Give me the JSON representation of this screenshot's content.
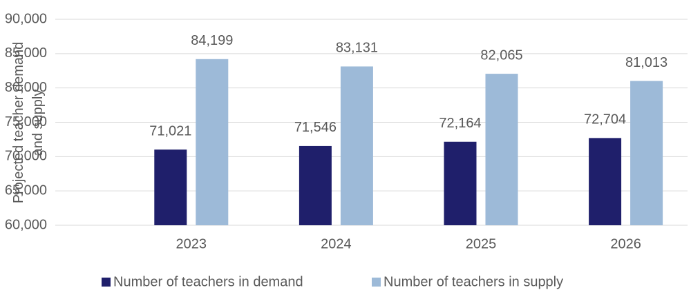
{
  "chart_data": {
    "type": "bar",
    "y_label": "Projected teacher demand and supply",
    "categories": [
      "2023",
      "2024",
      "2025",
      "2026"
    ],
    "series": [
      {
        "name": "Number of teachers in demand",
        "color": "#1f1f6b",
        "values": [
          71021,
          71546,
          72164,
          72704
        ],
        "value_labels": [
          "71,021",
          "71,546",
          "72,164",
          "72,704"
        ]
      },
      {
        "name": "Number of teachers in supply",
        "color": "#9dbad8",
        "values": [
          84199,
          83131,
          82065,
          81013
        ],
        "value_labels": [
          "84,199",
          "83,131",
          "82,065",
          "81,013"
        ]
      }
    ],
    "ylim": [
      60000,
      90000
    ],
    "yticks": [
      {
        "value": 60000,
        "label": "60,000"
      },
      {
        "value": 65000,
        "label": "65,000"
      },
      {
        "value": 70000,
        "label": "70,000"
      },
      {
        "value": 75000,
        "label": "75,000"
      },
      {
        "value": 80000,
        "label": "80,000"
      },
      {
        "value": 85000,
        "label": "85,000"
      },
      {
        "value": 90000,
        "label": "90,000"
      }
    ],
    "grid": true,
    "legend": "bottom"
  }
}
